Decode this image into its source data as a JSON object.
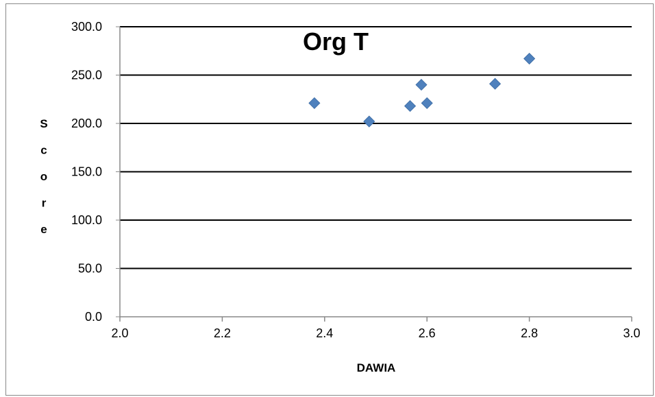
{
  "chart_data": {
    "type": "scatter",
    "title": "Org T",
    "xlabel": "DAWIA",
    "ylabel": "Score",
    "xlim": [
      2.0,
      3.0
    ],
    "ylim": [
      0.0,
      300.0
    ],
    "x_ticks": [
      "2.0",
      "2.2",
      "2.4",
      "2.6",
      "2.8",
      "3.0"
    ],
    "y_ticks": [
      "0.0",
      "50.0",
      "100.0",
      "150.0",
      "200.0",
      "250.0",
      "300.0"
    ],
    "grid": "horizontal",
    "legend": "none",
    "marker": "diamond",
    "color": "#4f81bd",
    "points": [
      {
        "x": 2.38,
        "y": 221
      },
      {
        "x": 2.487,
        "y": 202
      },
      {
        "x": 2.567,
        "y": 218
      },
      {
        "x": 2.589,
        "y": 240
      },
      {
        "x": 2.6,
        "y": 221
      },
      {
        "x": 2.733,
        "y": 241
      },
      {
        "x": 2.8,
        "y": 267
      }
    ]
  }
}
